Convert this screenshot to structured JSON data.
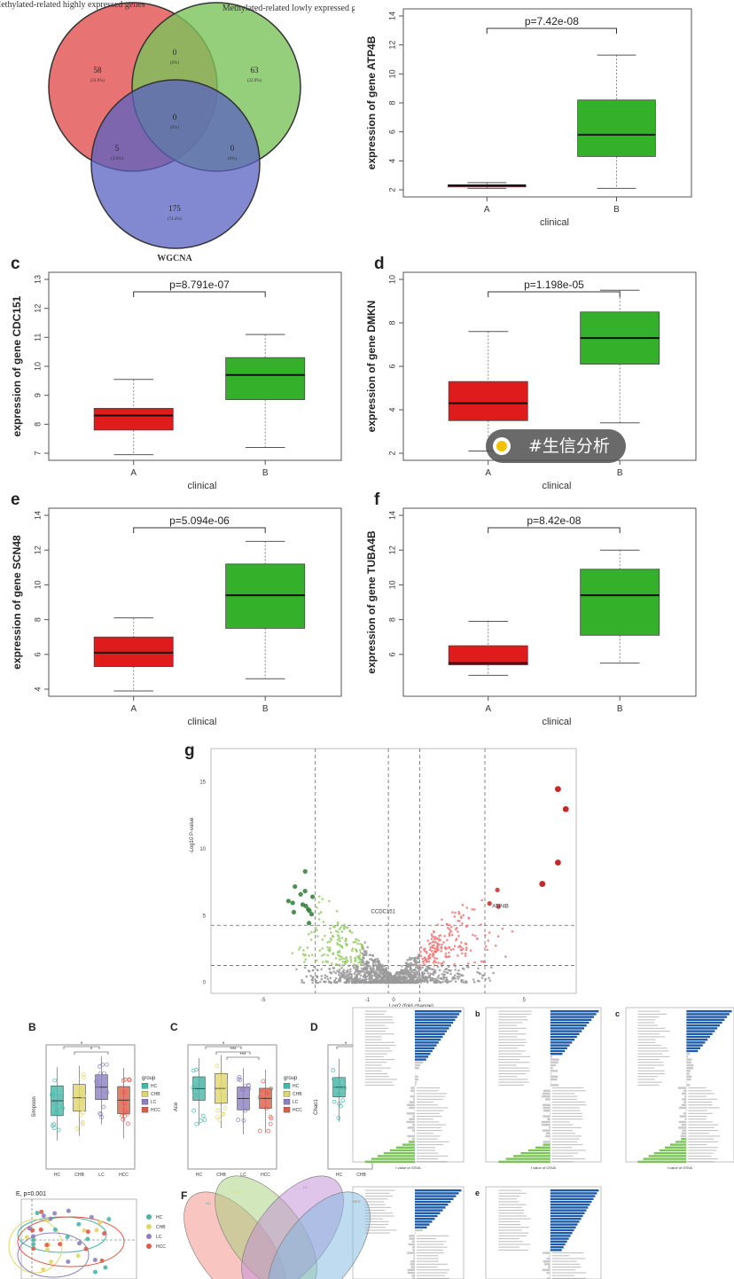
{
  "venn": {
    "set_a": "Methylated-related highly expressed genes",
    "set_b": "Methylated-related lowly expressed genes",
    "set_c": "WGCNA",
    "regions": [
      {
        "id": "a_only",
        "count": "58",
        "pct": "(24.9%)"
      },
      {
        "id": "b_only",
        "count": "63",
        "pct": "(22.9%)"
      },
      {
        "id": "c_only",
        "count": "175",
        "pct": "(74.4%)"
      },
      {
        "id": "ab",
        "count": "0",
        "pct": "(0%)"
      },
      {
        "id": "ac",
        "count": "5",
        "pct": "(3.0%)"
      },
      {
        "id": "bc",
        "count": "0",
        "pct": "(0%)"
      },
      {
        "id": "abc",
        "count": "0",
        "pct": "(0%)"
      }
    ]
  },
  "colors": {
    "groupA": "#e01b1b",
    "groupB": "#35b02b",
    "vennA": "#e35a5a",
    "vennB": "#7cc35a",
    "vennC": "#5a62c0"
  },
  "chart_data": [
    {
      "panel": "",
      "type": "boxplot",
      "gene": "ATP4B",
      "ylabel": "expression of gene ATP4B",
      "xlabel": "clinical",
      "pvalue": "p=7.42e-08",
      "ylim": [
        2,
        14
      ],
      "yticks": [
        2,
        4,
        6,
        8,
        10,
        12,
        14
      ],
      "categories": [
        "A",
        "B"
      ],
      "boxes": [
        {
          "min": 2.1,
          "q1": 2.2,
          "median": 2.3,
          "q3": 2.35,
          "max": 2.5
        },
        {
          "min": 2.1,
          "q1": 4.3,
          "median": 5.8,
          "q3": 8.2,
          "max": 11.3
        }
      ]
    },
    {
      "panel": "c",
      "type": "boxplot",
      "gene": "CDC151",
      "ylabel": "expression of gene  CDC151",
      "xlabel": "clinical",
      "pvalue": "p=8.791e-07",
      "ylim": [
        7,
        13
      ],
      "yticks": [
        7,
        8,
        9,
        10,
        11,
        12,
        13
      ],
      "categories": [
        "A",
        "B"
      ],
      "boxes": [
        {
          "min": 6.95,
          "q1": 7.8,
          "median": 8.3,
          "q3": 8.55,
          "max": 9.55
        },
        {
          "min": 7.2,
          "q1": 8.85,
          "median": 9.7,
          "q3": 10.3,
          "max": 11.1
        }
      ]
    },
    {
      "panel": "d",
      "type": "boxplot",
      "gene": "DMKN",
      "ylabel": "expression of gene  DMKN",
      "xlabel": "clinical",
      "pvalue": "p=1.198e-05",
      "ylim": [
        2,
        10
      ],
      "yticks": [
        2,
        4,
        6,
        8,
        10
      ],
      "categories": [
        "A",
        "B"
      ],
      "boxes": [
        {
          "min": 2.1,
          "q1": 3.5,
          "median": 4.3,
          "q3": 5.3,
          "max": 7.6
        },
        {
          "min": 3.4,
          "q1": 6.1,
          "median": 7.3,
          "q3": 8.5,
          "max": 9.5
        }
      ]
    },
    {
      "panel": "e",
      "type": "boxplot",
      "gene": "SCN48",
      "ylabel": "expression of gene  SCN48",
      "xlabel": "clinical",
      "pvalue": "p=5.094e-06",
      "ylim": [
        4,
        14
      ],
      "yticks": [
        4,
        6,
        8,
        10,
        12,
        14
      ],
      "categories": [
        "A",
        "B"
      ],
      "boxes": [
        {
          "min": 3.9,
          "q1": 5.3,
          "median": 6.1,
          "q3": 7.0,
          "max": 8.1
        },
        {
          "min": 4.6,
          "q1": 7.5,
          "median": 9.4,
          "q3": 11.2,
          "max": 12.5
        }
      ]
    },
    {
      "panel": "f",
      "type": "boxplot",
      "gene": "TUBA4B",
      "ylabel": "expression of gene  TUBA4B",
      "xlabel": "clinical",
      "pvalue": "p=8.42e-08",
      "ylim": [
        4,
        14
      ],
      "yticks": [
        6,
        8,
        10,
        12,
        14
      ],
      "categories": [
        "A",
        "B"
      ],
      "boxes": [
        {
          "min": 4.8,
          "q1": 5.4,
          "median": 5.5,
          "q3": 6.5,
          "max": 7.9
        },
        {
          "min": 5.5,
          "q1": 7.1,
          "median": 9.4,
          "q3": 10.9,
          "max": 12.0
        }
      ]
    }
  ],
  "volcano": {
    "panel": "g",
    "xlabel": "Log2 (fold change)",
    "ylabel": "-Log10 P-value",
    "yticks": [
      "15",
      "10",
      "5",
      "0"
    ],
    "xticks": [
      "-5",
      "-1",
      "0",
      "1",
      "5"
    ],
    "labels": [
      "CCDC151",
      "ATP4B"
    ]
  },
  "bottom": {
    "B": {
      "panel": "B",
      "ylabel": "Simpson",
      "groups": [
        "HC",
        "CHB",
        "LC",
        "HCC"
      ],
      "legend_title": "group",
      "sig": [
        "*",
        "*"
      ]
    },
    "C": {
      "panel": "C",
      "ylabel": "Ace",
      "groups": [
        "HC",
        "CHB",
        "LC",
        "HCC"
      ],
      "sig": [
        "*",
        "***",
        "***"
      ]
    },
    "D": {
      "panel": "D",
      "ylabel": "Chao1",
      "groups": [
        "HC",
        "CHB"
      ],
      "sig": [
        "*"
      ]
    },
    "E": {
      "panel": "E",
      "label": "p=0.001"
    },
    "F": {
      "panel": "F"
    },
    "gsva_panels": [
      "b",
      "c",
      "d",
      "e"
    ],
    "gsva_xlabel": "t value of GSVA",
    "group_colors": {
      "HC": "#49b6a9",
      "CHB": "#e0d76a",
      "LC": "#8d7fbf",
      "HCC": "#e05a4a"
    }
  },
  "watermark": "#生信分析"
}
